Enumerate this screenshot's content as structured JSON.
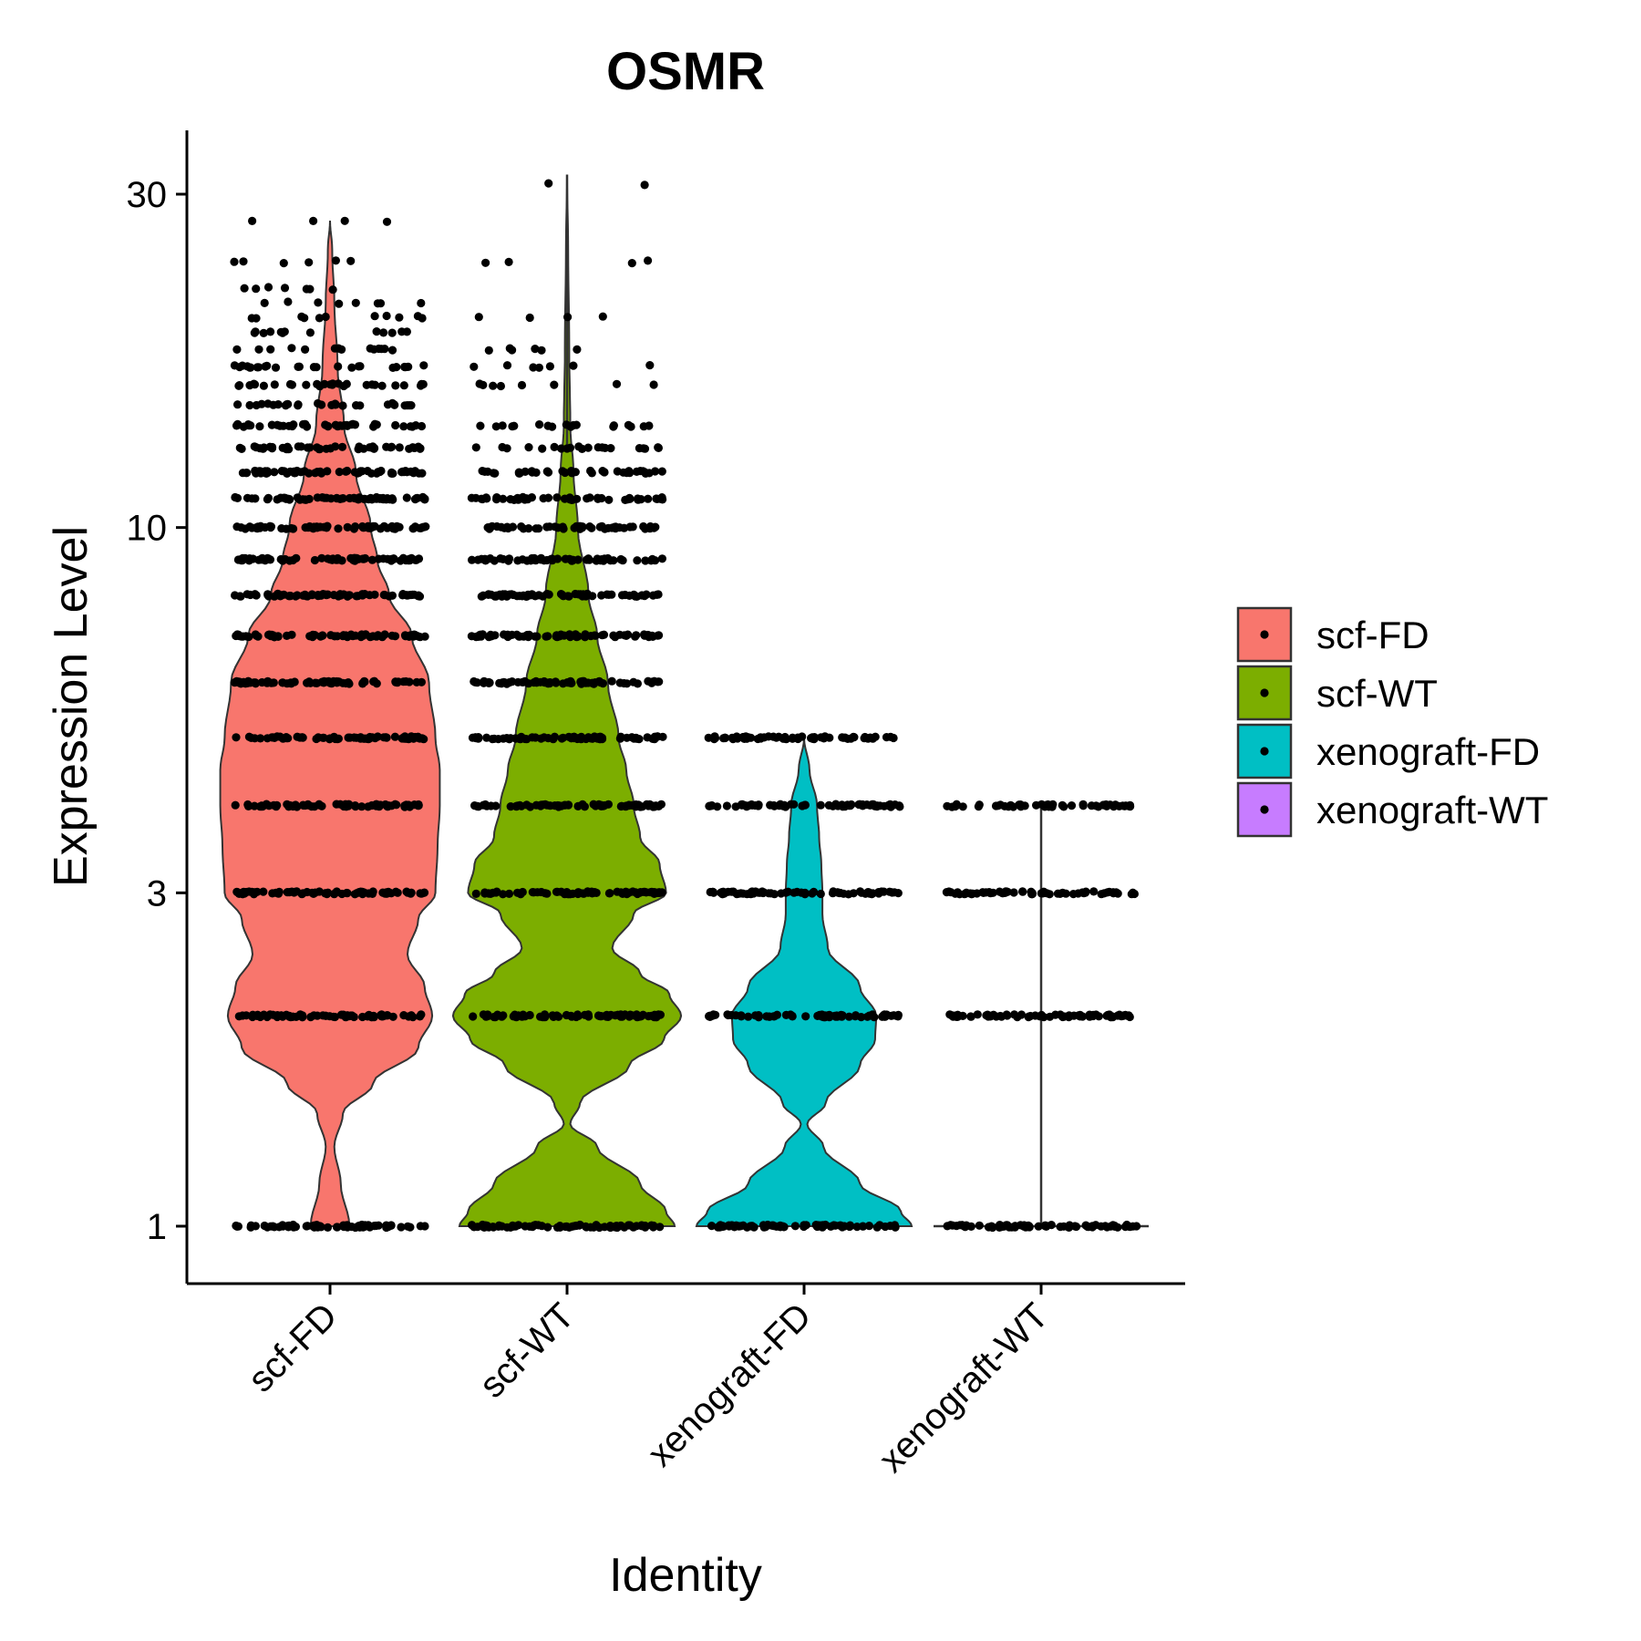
{
  "chart_data": {
    "type": "violin",
    "title": "OSMR",
    "xlabel": "Identity",
    "ylabel": "Expression Level",
    "yscale": "log",
    "ylim": [
      0.88,
      39
    ],
    "yticks": [
      1,
      3,
      10,
      30
    ],
    "ytick_labels": [
      "1",
      "3",
      "10",
      "30"
    ],
    "categories": [
      "scf-FD",
      "scf-WT",
      "xenograft-FD",
      "xenograft-WT"
    ],
    "legend_position": "right",
    "grid": false,
    "series": [
      {
        "name": "scf-FD",
        "color": "#F8766D",
        "max": 27.5,
        "violin_profile": [
          [
            1,
            0.18
          ],
          [
            1.15,
            0.1
          ],
          [
            1.3,
            0.04
          ],
          [
            1.45,
            0.12
          ],
          [
            1.6,
            0.4
          ],
          [
            1.8,
            0.82
          ],
          [
            2.0,
            0.95
          ],
          [
            2.2,
            0.88
          ],
          [
            2.45,
            0.72
          ],
          [
            2.75,
            0.82
          ],
          [
            3.0,
            0.98
          ],
          [
            3.5,
            1.0
          ],
          [
            4.0,
            1.02
          ],
          [
            4.5,
            1.02
          ],
          [
            5.0,
            0.98
          ],
          [
            6.0,
            0.92
          ],
          [
            7.0,
            0.76
          ],
          [
            8.0,
            0.55
          ],
          [
            9.0,
            0.44
          ],
          [
            10.0,
            0.38
          ],
          [
            12.0,
            0.24
          ],
          [
            14.0,
            0.13
          ],
          [
            17.0,
            0.07
          ],
          [
            21.0,
            0.04
          ],
          [
            25.0,
            0.02
          ],
          [
            27.5,
            0.0
          ]
        ],
        "dot_rows": [
          [
            1,
            1.0
          ],
          [
            2,
            1.0
          ],
          [
            3,
            1.0
          ],
          [
            4,
            1.0
          ],
          [
            5,
            1.0
          ],
          [
            6,
            1.0
          ],
          [
            7,
            1.0
          ],
          [
            8,
            0.98
          ],
          [
            9,
            0.98
          ],
          [
            10,
            0.95
          ],
          [
            11,
            0.88
          ],
          [
            12,
            0.86
          ],
          [
            13,
            0.65
          ],
          [
            14,
            0.6
          ],
          [
            15,
            0.42
          ],
          [
            16,
            0.4
          ],
          [
            17,
            0.35
          ],
          [
            18,
            0.2
          ],
          [
            19,
            0.18
          ],
          [
            20,
            0.15
          ],
          [
            21,
            0.12
          ],
          [
            22,
            0.1
          ],
          [
            24,
            0.08
          ],
          [
            27.5,
            0.05
          ]
        ]
      },
      {
        "name": "scf-WT",
        "color": "#7CAE00",
        "max": 32,
        "violin_profile": [
          [
            1,
            1.0
          ],
          [
            1.05,
            0.92
          ],
          [
            1.15,
            0.68
          ],
          [
            1.3,
            0.28
          ],
          [
            1.4,
            0.03
          ],
          [
            1.5,
            0.12
          ],
          [
            1.7,
            0.58
          ],
          [
            1.85,
            0.9
          ],
          [
            2.0,
            1.06
          ],
          [
            2.15,
            0.95
          ],
          [
            2.3,
            0.68
          ],
          [
            2.5,
            0.42
          ],
          [
            2.8,
            0.62
          ],
          [
            3.0,
            0.92
          ],
          [
            3.3,
            0.86
          ],
          [
            3.6,
            0.68
          ],
          [
            4.0,
            0.62
          ],
          [
            4.5,
            0.55
          ],
          [
            5.0,
            0.48
          ],
          [
            6.0,
            0.38
          ],
          [
            7.0,
            0.28
          ],
          [
            8.0,
            0.2
          ],
          [
            10.0,
            0.1
          ],
          [
            12.0,
            0.06
          ],
          [
            14.0,
            0.03
          ],
          [
            18.0,
            0.02
          ],
          [
            25.0,
            0.01
          ],
          [
            32.0,
            0.0
          ]
        ],
        "dot_rows": [
          [
            1,
            1.0
          ],
          [
            2,
            1.0
          ],
          [
            3,
            1.0
          ],
          [
            4,
            1.0
          ],
          [
            5,
            1.0
          ],
          [
            6,
            1.0
          ],
          [
            7,
            0.95
          ],
          [
            8,
            0.92
          ],
          [
            9,
            0.85
          ],
          [
            10,
            0.72
          ],
          [
            11,
            0.7
          ],
          [
            12,
            0.55
          ],
          [
            13,
            0.3
          ],
          [
            14,
            0.25
          ],
          [
            16,
            0.12
          ],
          [
            17,
            0.1
          ],
          [
            18,
            0.08
          ],
          [
            20,
            0.06
          ],
          [
            24,
            0.06
          ],
          [
            31,
            0.03
          ]
        ]
      },
      {
        "name": "xenograft-FD",
        "color": "#00BFC4",
        "max": 5,
        "violin_profile": [
          [
            1,
            1.0
          ],
          [
            1.05,
            0.9
          ],
          [
            1.15,
            0.52
          ],
          [
            1.3,
            0.18
          ],
          [
            1.4,
            0.03
          ],
          [
            1.5,
            0.2
          ],
          [
            1.7,
            0.52
          ],
          [
            1.85,
            0.66
          ],
          [
            2.0,
            0.67
          ],
          [
            2.2,
            0.52
          ],
          [
            2.5,
            0.22
          ],
          [
            2.8,
            0.17
          ],
          [
            3.0,
            0.17
          ],
          [
            3.3,
            0.16
          ],
          [
            3.6,
            0.14
          ],
          [
            4.0,
            0.12
          ],
          [
            4.5,
            0.05
          ],
          [
            5.0,
            0.0
          ]
        ],
        "dot_rows": [
          [
            1,
            1.0
          ],
          [
            2,
            1.0
          ],
          [
            3,
            1.0
          ],
          [
            4,
            0.95
          ],
          [
            5,
            0.92
          ]
        ]
      },
      {
        "name": "xenograft-WT",
        "color": "#C77CFF",
        "max": 4,
        "violin_profile": [
          [
            1,
            1.0
          ],
          [
            1.02,
            0.0
          ],
          [
            4.0,
            0.0
          ]
        ],
        "dot_rows": [
          [
            1,
            1.0
          ],
          [
            2,
            1.0
          ],
          [
            3,
            0.9
          ],
          [
            4,
            0.75
          ]
        ]
      }
    ]
  }
}
